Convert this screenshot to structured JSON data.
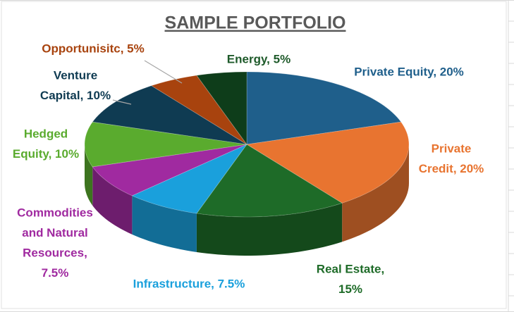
{
  "chart_data": {
    "type": "pie",
    "title": "SAMPLE PORTFOLIO",
    "labels": [
      [
        "Private Equity, 20%"
      ],
      [
        "Private",
        "Credit, 20%"
      ],
      [
        "Real Estate,",
        "15%"
      ],
      [
        "Infrastructure, 7.5%"
      ],
      [
        "Commodities",
        "and Natural",
        "Resources,",
        "7.5%"
      ],
      [
        "Hedged",
        "Equity, 10%"
      ],
      [
        "Venture",
        "Capital, 10%"
      ],
      [
        "Opportunisitc, 5%"
      ],
      [
        "Energy, 5%"
      ]
    ],
    "values": [
      20,
      20,
      15,
      7.5,
      7.5,
      10,
      10,
      5,
      5
    ],
    "colors": [
      "#1f5f8b",
      "#e87430",
      "#1e6b28",
      "#1aa0dc",
      "#a02aa0",
      "#5aab2e",
      "#0f3b52",
      "#a8430e",
      "#0e3d1a"
    ]
  }
}
